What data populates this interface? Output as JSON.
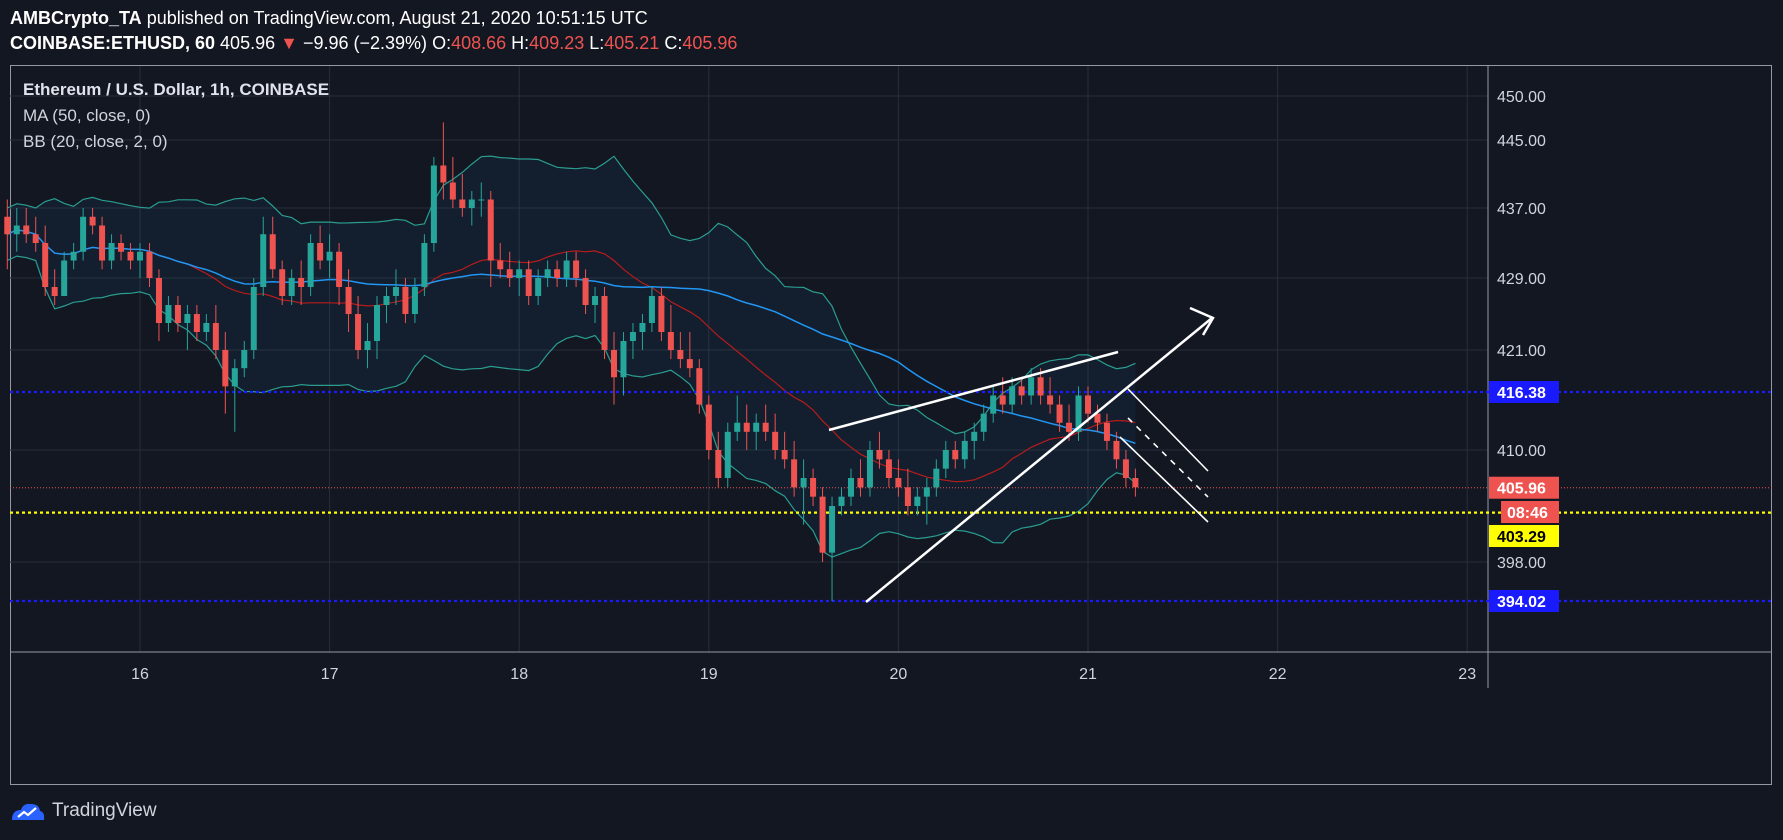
{
  "header": {
    "author": "AMBCrypto_TA",
    "published_text": "published on TradingView.com, August 21, 2020 10:51:15 UTC",
    "symbol": "COINBASE:ETHUSD, 60",
    "last": "405.96",
    "change_arrow": "▼",
    "change": "−9.96 (−2.39%)",
    "open_label": "O:",
    "open": "408.66",
    "high_label": "H:",
    "high": "409.23",
    "low_label": "L:",
    "low": "405.21",
    "close_label": "C:",
    "close": "405.96"
  },
  "legend": {
    "title": "Ethereum / U.S. Dollar, 1h, COINBASE",
    "ma": "MA (50, close, 0)",
    "bb": "BB (20, close, 2, 0)"
  },
  "footer": {
    "brand": "TradingView"
  },
  "colors": {
    "background": "#131722",
    "up": "#26a69a",
    "down": "#ef5350",
    "ma": "#2196f3",
    "bb_band": "#2a9d8f",
    "bb_basis": "#b71c1c",
    "support_line": "#1a1aff",
    "yellow_line": "#ffff00"
  },
  "chart_data": {
    "type": "candlestick",
    "x_ticks": [
      "16",
      "17",
      "18",
      "19",
      "20",
      "21",
      "22",
      "23"
    ],
    "y_ticks": [
      "450.00",
      "445.00",
      "437.00",
      "429.00",
      "421.00",
      "410.00",
      "398.00"
    ],
    "price_labels": [
      {
        "value": 416.38,
        "text": "416.38",
        "bg": "#1a1aff",
        "fg": "#ffffff"
      },
      {
        "value": 405.96,
        "text": "405.96",
        "bg": "#ef5350",
        "fg": "#ffffff"
      },
      {
        "value": 403.29,
        "text": "403.29",
        "bg": "#ffff00",
        "fg": "#000000"
      },
      {
        "value": 394.02,
        "text": "394.02",
        "bg": "#1a1aff",
        "fg": "#ffffff"
      }
    ],
    "countdown": "08:46",
    "horizontal_lines": [
      {
        "value": 416.38,
        "style": "dotted",
        "color": "#1a1aff"
      },
      {
        "value": 405.96,
        "style": "dotted-thin",
        "color": "#ef5350"
      },
      {
        "value": 403.29,
        "style": "dotted",
        "color": "#ffff00"
      },
      {
        "value": 394.02,
        "style": "dotted",
        "color": "#1a1aff"
      }
    ],
    "candles": [
      [
        15.3,
        436,
        438,
        430,
        434
      ],
      [
        15.35,
        434,
        437,
        432,
        435
      ],
      [
        15.4,
        435,
        437,
        433,
        434
      ],
      [
        15.45,
        434,
        436,
        432,
        433
      ],
      [
        15.5,
        433,
        435,
        427,
        428
      ],
      [
        15.55,
        428,
        430,
        426,
        427
      ],
      [
        15.6,
        427,
        432,
        427,
        431
      ],
      [
        15.65,
        431,
        433,
        430,
        432
      ],
      [
        15.7,
        432,
        437,
        431,
        436
      ],
      [
        15.75,
        436,
        437,
        434,
        435
      ],
      [
        15.8,
        435,
        436,
        430,
        431
      ],
      [
        15.85,
        431,
        434,
        430,
        433
      ],
      [
        15.9,
        433,
        434,
        431,
        432
      ],
      [
        15.95,
        432,
        433,
        430,
        431
      ],
      [
        16.0,
        431,
        433,
        429,
        432
      ],
      [
        16.05,
        432,
        433,
        428,
        429
      ],
      [
        16.1,
        429,
        430,
        422,
        424
      ],
      [
        16.15,
        424,
        427,
        423,
        426
      ],
      [
        16.2,
        426,
        427,
        423,
        424
      ],
      [
        16.25,
        424,
        426,
        421,
        425
      ],
      [
        16.3,
        425,
        426,
        422,
        423
      ],
      [
        16.35,
        423,
        425,
        422,
        424
      ],
      [
        16.4,
        424,
        426,
        420,
        421
      ],
      [
        16.45,
        421,
        423,
        414,
        417
      ],
      [
        16.5,
        417,
        420,
        412,
        419
      ],
      [
        16.55,
        419,
        422,
        418,
        421
      ],
      [
        16.6,
        421,
        429,
        420,
        428
      ],
      [
        16.65,
        428,
        436,
        427,
        434
      ],
      [
        16.7,
        434,
        436,
        429,
        430
      ],
      [
        16.75,
        430,
        431,
        426,
        427
      ],
      [
        16.8,
        427,
        430,
        426,
        429
      ],
      [
        16.85,
        429,
        431,
        426,
        428
      ],
      [
        16.9,
        428,
        434,
        427,
        433
      ],
      [
        16.95,
        433,
        435,
        430,
        431
      ],
      [
        17.0,
        431,
        434,
        429,
        432
      ],
      [
        17.05,
        432,
        433,
        426,
        428
      ],
      [
        17.1,
        428,
        430,
        423,
        425
      ],
      [
        17.15,
        425,
        427,
        420,
        421
      ],
      [
        17.2,
        421,
        424,
        419,
        422
      ],
      [
        17.25,
        422,
        427,
        420,
        426
      ],
      [
        17.3,
        426,
        428,
        424,
        427
      ],
      [
        17.35,
        427,
        430,
        426,
        428
      ],
      [
        17.4,
        428,
        429,
        424,
        425
      ],
      [
        17.45,
        425,
        429,
        424,
        428
      ],
      [
        17.5,
        428,
        434,
        427,
        433
      ],
      [
        17.55,
        433,
        443,
        432,
        442
      ],
      [
        17.6,
        442,
        447,
        438,
        440
      ],
      [
        17.65,
        440,
        443,
        437,
        438
      ],
      [
        17.7,
        438,
        441,
        436,
        437
      ],
      [
        17.75,
        437,
        439,
        435,
        438
      ],
      [
        17.8,
        438,
        440,
        436,
        438
      ],
      [
        17.85,
        438,
        439,
        428,
        431
      ],
      [
        17.9,
        431,
        433,
        429,
        430
      ],
      [
        17.95,
        430,
        432,
        428,
        429
      ],
      [
        18.0,
        429,
        431,
        427,
        430
      ],
      [
        18.05,
        430,
        431,
        426,
        427
      ],
      [
        18.1,
        427,
        430,
        426,
        429
      ],
      [
        18.15,
        429,
        431,
        428,
        430
      ],
      [
        18.2,
        430,
        431,
        428,
        429
      ],
      [
        18.25,
        429,
        432,
        428,
        431
      ],
      [
        18.3,
        431,
        432,
        428,
        429
      ],
      [
        18.35,
        429,
        430,
        425,
        426
      ],
      [
        18.4,
        426,
        428,
        424,
        427
      ],
      [
        18.45,
        427,
        428,
        420,
        421
      ],
      [
        18.5,
        421,
        423,
        415,
        418
      ],
      [
        18.55,
        418,
        423,
        416,
        422
      ],
      [
        18.6,
        422,
        424,
        420,
        423
      ],
      [
        18.65,
        423,
        425,
        421,
        424
      ],
      [
        18.7,
        424,
        428,
        423,
        427
      ],
      [
        18.75,
        427,
        428,
        422,
        423
      ],
      [
        18.8,
        423,
        426,
        420,
        421
      ],
      [
        18.85,
        421,
        423,
        419,
        420
      ],
      [
        18.9,
        420,
        423,
        418,
        419
      ],
      [
        18.95,
        419,
        420,
        414,
        415
      ],
      [
        19.0,
        415,
        416,
        409,
        410
      ],
      [
        19.05,
        410,
        412,
        406,
        407
      ],
      [
        19.1,
        407,
        413,
        406,
        412
      ],
      [
        19.15,
        412,
        416,
        411,
        413
      ],
      [
        19.2,
        413,
        415,
        410,
        412
      ],
      [
        19.25,
        412,
        414,
        410,
        413
      ],
      [
        19.3,
        413,
        415,
        411,
        412
      ],
      [
        19.35,
        412,
        414,
        409,
        410
      ],
      [
        19.4,
        410,
        412,
        408,
        409
      ],
      [
        19.45,
        409,
        411,
        405,
        406
      ],
      [
        19.5,
        406,
        409,
        402,
        407
      ],
      [
        19.55,
        407,
        408,
        404,
        405
      ],
      [
        19.6,
        405,
        406,
        398,
        399
      ],
      [
        19.65,
        399,
        405,
        394,
        404
      ],
      [
        19.7,
        404,
        406,
        403,
        405
      ],
      [
        19.75,
        405,
        408,
        404,
        407
      ],
      [
        19.8,
        407,
        409,
        405,
        406
      ],
      [
        19.85,
        406,
        411,
        405,
        410
      ],
      [
        19.9,
        410,
        412,
        408,
        409
      ],
      [
        19.95,
        409,
        410,
        406,
        407
      ],
      [
        20.0,
        407,
        409,
        405,
        406
      ],
      [
        20.05,
        406,
        408,
        403,
        404
      ],
      [
        20.1,
        404,
        406,
        403,
        405
      ],
      [
        20.15,
        405,
        407,
        402,
        406
      ],
      [
        20.2,
        406,
        409,
        405,
        408
      ],
      [
        20.25,
        408,
        411,
        407,
        410
      ],
      [
        20.3,
        410,
        411,
        408,
        409
      ],
      [
        20.35,
        409,
        412,
        408,
        411
      ],
      [
        20.4,
        411,
        413,
        409,
        412
      ],
      [
        20.45,
        412,
        415,
        411,
        414
      ],
      [
        20.5,
        414,
        417,
        413,
        416
      ],
      [
        20.55,
        416,
        418,
        414,
        415
      ],
      [
        20.6,
        415,
        418,
        414,
        417
      ],
      [
        20.65,
        417,
        418,
        415,
        416
      ],
      [
        20.7,
        416,
        419,
        415,
        418
      ],
      [
        20.75,
        418,
        419,
        415,
        416
      ],
      [
        20.8,
        416,
        418,
        414,
        415
      ],
      [
        20.85,
        415,
        416,
        412,
        413
      ],
      [
        20.9,
        413,
        415,
        411,
        412
      ],
      [
        20.95,
        412,
        417,
        411,
        416
      ],
      [
        21.0,
        416,
        417,
        413,
        414
      ],
      [
        21.05,
        414,
        415,
        412,
        413
      ],
      [
        21.1,
        413,
        414,
        410,
        411
      ],
      [
        21.15,
        411,
        412,
        408,
        409
      ],
      [
        21.2,
        409,
        410,
        406,
        407
      ],
      [
        21.25,
        407,
        408,
        405,
        406
      ]
    ]
  }
}
